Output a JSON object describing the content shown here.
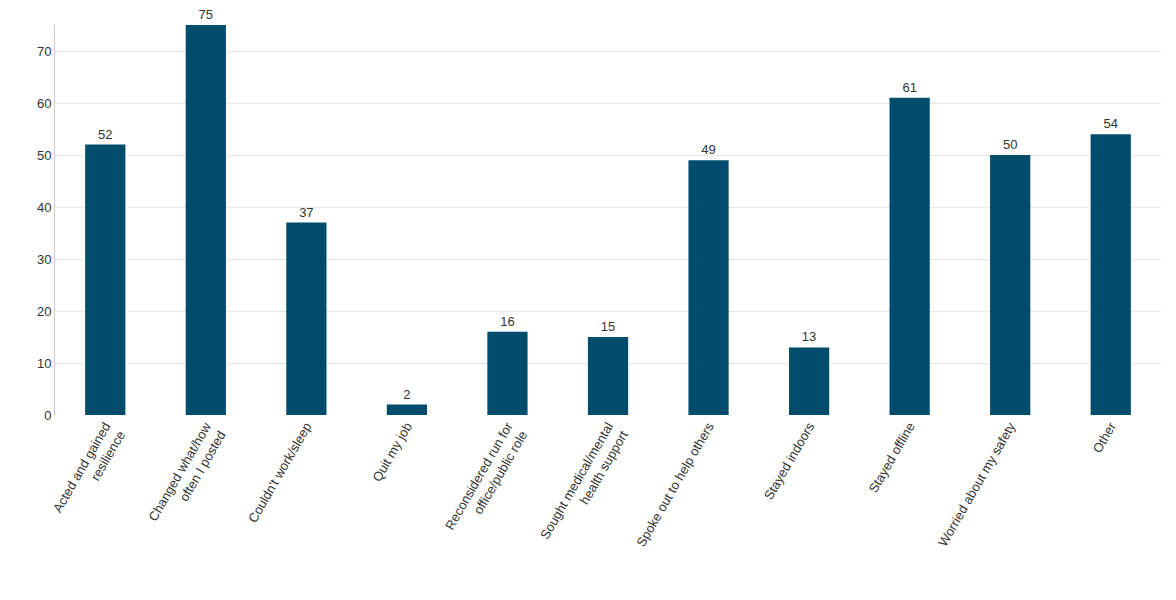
{
  "chart_data": {
    "type": "bar",
    "categories": [
      "Acted and gained resilience",
      "Changed what/how often I posted",
      "Couldn't work/sleep",
      "Quit my job",
      "Reconsidered run for office/public role",
      "Sought medical/mental health support",
      "Spoke out to help others",
      "Stayed indoors",
      "Stayed offline",
      "Worried about my safety",
      "Other"
    ],
    "values": [
      52,
      75,
      37,
      2,
      16,
      15,
      49,
      13,
      61,
      50,
      54
    ],
    "color": "#004c6d",
    "ylim": [
      0,
      75
    ],
    "yticks": [
      0,
      10,
      20,
      30,
      40,
      50,
      60,
      70
    ],
    "grid": true,
    "data_labels": true
  }
}
